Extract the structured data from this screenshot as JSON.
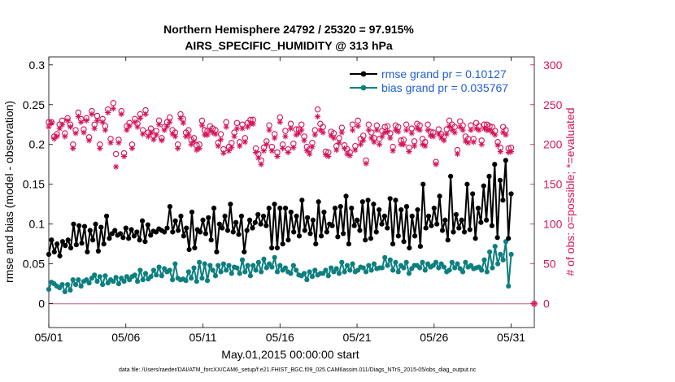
{
  "colors": {
    "rmse": "#000000",
    "bias": "#0e7f7f",
    "obs": "#d4145a",
    "legend_text": "#1f5fd8",
    "zero_line": "#d48aa8",
    "axis": "#000000"
  },
  "chart_data": {
    "type": "line",
    "title_line1": "Northern Hemisphere 24792 / 25320 = 97.915%",
    "title_line2": "AIRS_SPECIFIC_HUMIDITY @ 313 hPa",
    "xlabel": "May.01,2015 00:00:00 start",
    "ylabel_left": "rmse and bias (model - observation)",
    "ylabel_right": "# of obs: o=possible; *=evaluated",
    "footnote": "data file: /Users/raeder/DAI/ATM_forcXX/CAM6_setup/f.e21.FHIST_BGC.f09_025.CAM6assim.011/Diags_NTrS_2015-05/obs_diag_output.nc",
    "x_range_days": [
      0,
      31.5
    ],
    "ylim_left": [
      -0.03,
      0.31
    ],
    "ylim_right": [
      -30,
      310
    ],
    "x_ticks": [
      {
        "day": 0,
        "label": "05/01"
      },
      {
        "day": 5,
        "label": "05/06"
      },
      {
        "day": 10,
        "label": "05/11"
      },
      {
        "day": 15,
        "label": "05/16"
      },
      {
        "day": 20,
        "label": "05/21"
      },
      {
        "day": 25,
        "label": "05/26"
      },
      {
        "day": 30,
        "label": "05/31"
      }
    ],
    "y_ticks_left": [
      {
        "value": 0,
        "label": "0"
      },
      {
        "value": 0.05,
        "label": "0.05"
      },
      {
        "value": 0.1,
        "label": "0.1"
      },
      {
        "value": 0.15,
        "label": "0.15"
      },
      {
        "value": 0.2,
        "label": "0.2"
      },
      {
        "value": 0.25,
        "label": "0.25"
      },
      {
        "value": 0.3,
        "label": "0.3"
      }
    ],
    "y_ticks_right": [
      {
        "value": 0,
        "label": "0"
      },
      {
        "value": 50,
        "label": "50"
      },
      {
        "value": 100,
        "label": "100"
      },
      {
        "value": 150,
        "label": "150"
      },
      {
        "value": 200,
        "label": "200"
      },
      {
        "value": 250,
        "label": "250"
      },
      {
        "value": 300,
        "label": "300"
      }
    ],
    "legend": [
      {
        "series": "rmse",
        "label": "rmse grand pr = 0.10127"
      },
      {
        "series": "bias",
        "label": "bias grand pr = 0.035767"
      }
    ],
    "series": [
      {
        "name": "rmse",
        "axis": "left",
        "marker": "filled-circle",
        "values": [
          0.062,
          0.08,
          0.065,
          0.075,
          0.06,
          0.078,
          0.073,
          0.08,
          0.07,
          0.1,
          0.074,
          0.098,
          0.076,
          0.097,
          0.065,
          0.092,
          0.08,
          0.1,
          0.066,
          0.096,
          0.075,
          0.11,
          0.082,
          0.088,
          0.092,
          0.086,
          0.088,
          0.083,
          0.095,
          0.082,
          0.093,
          0.085,
          0.09,
          0.08,
          0.104,
          0.078,
          0.099,
          0.086,
          0.091,
          0.09,
          0.094,
          0.092,
          0.09,
          0.095,
          0.122,
          0.09,
          0.104,
          0.092,
          0.11,
          0.085,
          0.095,
          0.068,
          0.115,
          0.07,
          0.093,
          0.09,
          0.105,
          0.088,
          0.108,
          0.08,
          0.12,
          0.065,
          0.1,
          0.095,
          0.11,
          0.092,
          0.125,
          0.09,
          0.102,
          0.087,
          0.11,
          0.065,
          0.092,
          0.105,
          0.095,
          0.102,
          0.112,
          0.1,
          0.11,
          0.098,
          0.12,
          0.07,
          0.125,
          0.07,
          0.12,
          0.075,
          0.12,
          0.08,
          0.115,
          0.09,
          0.11,
          0.085,
          0.13,
          0.092,
          0.108,
          0.088,
          0.105,
          0.075,
          0.128,
          0.085,
          0.115,
          0.09,
          0.1,
          0.098,
          0.12,
          0.084,
          0.122,
          0.088,
          0.135,
          0.075,
          0.12,
          0.098,
          0.105,
          0.092,
          0.128,
          0.08,
          0.13,
          0.082,
          0.125,
          0.09,
          0.118,
          0.1,
          0.11,
          0.095,
          0.132,
          0.075,
          0.13,
          0.085,
          0.118,
          0.078,
          0.122,
          0.07,
          0.11,
          0.085,
          0.118,
          0.072,
          0.15,
          0.095,
          0.11,
          0.098,
          0.12,
          0.1,
          0.135,
          0.092,
          0.105,
          0.08,
          0.16,
          0.09,
          0.112,
          0.095,
          0.105,
          0.09,
          0.15,
          0.093,
          0.138,
          0.082,
          0.12,
          0.102,
          0.148,
          0.105,
          0.16,
          0.098,
          0.175,
          0.083,
          0.155,
          0.13,
          0.18,
          0.082,
          0.138
        ]
      },
      {
        "name": "bias",
        "axis": "left",
        "marker": "filled-circle",
        "values": [
          0.018,
          0.027,
          0.025,
          0.022,
          0.02,
          0.024,
          0.015,
          0.024,
          0.017,
          0.03,
          0.024,
          0.03,
          0.022,
          0.028,
          0.03,
          0.026,
          0.032,
          0.036,
          0.028,
          0.034,
          0.024,
          0.035,
          0.026,
          0.03,
          0.028,
          0.033,
          0.025,
          0.032,
          0.028,
          0.034,
          0.03,
          0.034,
          0.036,
          0.028,
          0.042,
          0.03,
          0.038,
          0.031,
          0.034,
          0.042,
          0.036,
          0.046,
          0.035,
          0.044,
          0.04,
          0.042,
          0.03,
          0.05,
          0.032,
          0.03,
          0.031,
          0.029,
          0.04,
          0.032,
          0.045,
          0.028,
          0.052,
          0.032,
          0.05,
          0.029,
          0.048,
          0.042,
          0.035,
          0.048,
          0.04,
          0.05,
          0.042,
          0.048,
          0.038,
          0.046,
          0.045,
          0.038,
          0.055,
          0.04,
          0.048,
          0.035,
          0.048,
          0.042,
          0.052,
          0.04,
          0.056,
          0.045,
          0.05,
          0.046,
          0.058,
          0.04,
          0.048,
          0.042,
          0.045,
          0.04,
          0.038,
          0.048,
          0.042,
          0.036,
          0.035,
          0.038,
          0.03,
          0.04,
          0.034,
          0.042,
          0.036,
          0.038,
          0.038,
          0.042,
          0.035,
          0.045,
          0.04,
          0.044,
          0.038,
          0.052,
          0.04,
          0.048,
          0.042,
          0.05,
          0.04,
          0.042,
          0.046,
          0.045,
          0.04,
          0.048,
          0.042,
          0.05,
          0.044,
          0.045,
          0.045,
          0.058,
          0.048,
          0.055,
          0.042,
          0.052,
          0.04,
          0.048,
          0.045,
          0.052,
          0.038,
          0.044,
          0.048,
          0.048,
          0.045,
          0.052,
          0.042,
          0.05,
          0.046,
          0.048,
          0.052,
          0.045,
          0.05,
          0.046,
          0.04,
          0.042,
          0.052,
          0.045,
          0.05,
          0.044,
          0.04,
          0.052,
          0.046,
          0.048,
          0.044,
          0.045,
          0.046,
          0.042,
          0.055,
          0.04,
          0.065,
          0.045,
          0.072,
          0.05,
          0.062,
          0.055,
          0.078,
          0.022,
          0.062
        ]
      },
      {
        "name": "possible",
        "axis": "right",
        "marker": "circle",
        "values": [
          228,
          228,
          210,
          213,
          225,
          230,
          214,
          233,
          225,
          200,
          218,
          240,
          232,
          219,
          233,
          209,
          242,
          225,
          236,
          200,
          232,
          223,
          244,
          207,
          252,
          188,
          206,
          242,
          189,
          223,
          227,
          200,
          232,
          226,
          238,
          218,
          243,
          215,
          220,
          211,
          217,
          230,
          208,
          222,
          228,
          234,
          218,
          215,
          200,
          238,
          232,
          215,
          218,
          206,
          208,
          199,
          200,
          230,
          218,
          217,
          223,
          220,
          218,
          202,
          213,
          194,
          228,
          197,
          202,
          215,
          227,
          203,
          225,
          208,
          227,
          231,
          231,
          195,
          188,
          180,
          196,
          204,
          224,
          197,
          213,
          190,
          234,
          200,
          217,
          194,
          226,
          201,
          219,
          219,
          225,
          210,
          197,
          194,
          202,
          218,
          244,
          226,
          222,
          191,
          190,
          216,
          214,
          198,
          208,
          221,
          199,
          194,
          190,
          225,
          198,
          230,
          207,
          211,
          180,
          225,
          215,
          208,
          224,
          207,
          217,
          222,
          223,
          214,
          197,
          224,
          222,
          205,
          206,
          225,
          196,
          220,
          204,
          226,
          224,
          207,
          203,
          225,
          216,
          215,
          178,
          219,
          213,
          210,
          219,
          230,
          225,
          222,
          193,
          229,
          224,
          210,
          207,
          224,
          207,
          227,
          223,
          205,
          225,
          225,
          223,
          222,
          217,
          203,
          196,
          222,
          218,
          195,
          196
        ]
      },
      {
        "name": "evaluated",
        "axis": "right",
        "marker": "asterisk",
        "values": [
          222,
          227,
          207,
          210,
          220,
          225,
          210,
          230,
          222,
          195,
          214,
          235,
          228,
          215,
          230,
          205,
          238,
          220,
          230,
          195,
          228,
          218,
          240,
          202,
          245,
          172,
          202,
          238,
          185,
          218,
          223,
          195,
          228,
          222,
          233,
          213,
          238,
          210,
          215,
          206,
          212,
          225,
          205,
          218,
          223,
          228,
          213,
          210,
          195,
          233,
          227,
          210,
          212,
          200,
          204,
          193,
          195,
          224,
          212,
          212,
          218,
          215,
          213,
          198,
          206,
          189,
          222,
          192,
          196,
          210,
          220,
          198,
          220,
          203,
          222,
          226,
          226,
          190,
          183,
          175,
          192,
          200,
          218,
          192,
          208,
          185,
          228,
          195,
          210,
          190,
          220,
          196,
          212,
          214,
          218,
          205,
          192,
          188,
          197,
          212,
          235,
          218,
          215,
          187,
          185,
          211,
          208,
          193,
          202,
          215,
          195,
          188,
          186,
          218,
          193,
          223,
          200,
          205,
          176,
          218,
          208,
          203,
          218,
          200,
          210,
          215,
          216,
          208,
          192,
          218,
          216,
          200,
          200,
          218,
          191,
          214,
          198,
          220,
          218,
          200,
          198,
          218,
          211,
          210,
          175,
          213,
          208,
          205,
          213,
          223,
          218,
          215,
          188,
          222,
          218,
          204,
          202,
          218,
          203,
          220,
          218,
          200,
          220,
          218,
          218,
          215,
          212,
          199,
          191,
          215,
          212,
          190,
          191
        ]
      }
    ]
  }
}
